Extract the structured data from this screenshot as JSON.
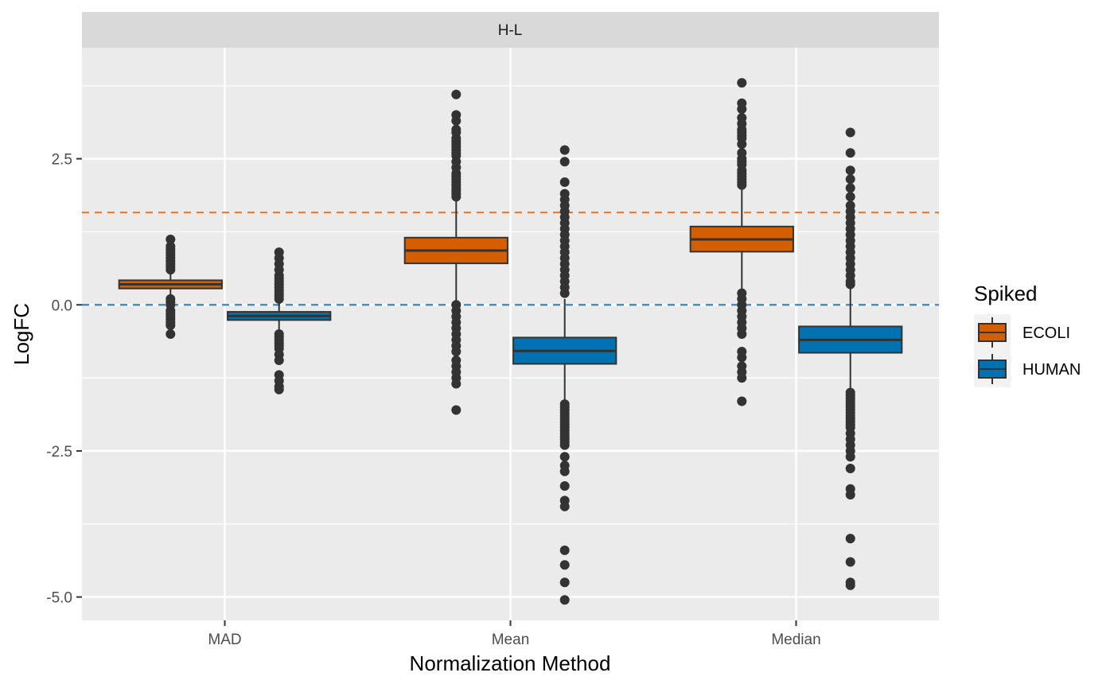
{
  "chart_data": {
    "type": "boxplot",
    "facet_label": "H-L",
    "xlabel": "Normalization Method",
    "ylabel": "LogFC",
    "ylim": [
      -5.4,
      4.4
    ],
    "y_ticks": [
      -5.0,
      -2.5,
      0.0,
      2.5
    ],
    "y_tick_labels": [
      "-5.0",
      "-2.5",
      "0.0",
      "2.5"
    ],
    "categories": [
      "MAD",
      "Mean",
      "Median"
    ],
    "legend": {
      "title": "Spiked",
      "position": "right"
    },
    "grid": true,
    "reference_lines": [
      {
        "y": 1.58,
        "color": "#E07B2E",
        "style": "dashed"
      },
      {
        "y": 0.0,
        "color": "#2E8BC8",
        "style": "dashed"
      }
    ],
    "series": [
      {
        "name": "ECOLI",
        "color": "#D55E00",
        "boxes": [
          {
            "category": "MAD",
            "min": -0.05,
            "q1": 0.28,
            "median": 0.35,
            "q3": 0.42,
            "max": 0.55,
            "outliers": [
              1.12,
              1.0,
              0.95,
              0.9,
              0.85,
              0.8,
              0.75,
              0.7,
              0.65,
              0.6,
              0.1,
              0.05,
              0.0,
              -0.1,
              -0.15,
              -0.2,
              -0.25,
              -0.3,
              -0.35,
              -0.5
            ]
          },
          {
            "category": "Mean",
            "min": 0.05,
            "q1": 0.71,
            "median": 0.93,
            "q3": 1.15,
            "max": 1.8,
            "outliers": [
              3.6,
              3.25,
              3.15,
              3.0,
              2.95,
              2.85,
              2.8,
              2.75,
              2.7,
              2.65,
              2.6,
              2.55,
              2.45,
              2.35,
              2.25,
              2.2,
              2.15,
              2.1,
              2.05,
              2.0,
              1.95,
              1.9,
              1.85,
              0.0,
              -0.1,
              -0.2,
              -0.3,
              -0.4,
              -0.5,
              -0.6,
              -0.7,
              -0.8,
              -0.95,
              -1.05,
              -1.15,
              -1.25,
              -1.35,
              -1.8
            ]
          },
          {
            "category": "Median",
            "min": 0.25,
            "q1": 0.91,
            "median": 1.12,
            "q3": 1.34,
            "max": 2.0,
            "outliers": [
              3.8,
              3.45,
              3.35,
              3.2,
              3.1,
              3.0,
              2.95,
              2.9,
              2.85,
              2.75,
              2.6,
              2.5,
              2.45,
              2.4,
              2.3,
              2.25,
              2.2,
              2.15,
              2.1,
              2.05,
              0.2,
              0.1,
              0.0,
              -0.1,
              -0.2,
              -0.3,
              -0.4,
              -0.5,
              -0.8,
              -0.9,
              -1.05,
              -1.15,
              -1.25,
              -1.65
            ]
          }
        ]
      },
      {
        "name": "HUMAN",
        "color": "#0072B2",
        "boxes": [
          {
            "category": "MAD",
            "min": -0.45,
            "q1": -0.26,
            "median": -0.19,
            "q3": -0.12,
            "max": 0.05,
            "outliers": [
              0.9,
              0.8,
              0.7,
              0.6,
              0.5,
              0.45,
              0.4,
              0.35,
              0.3,
              0.25,
              0.2,
              0.15,
              0.1,
              -0.5,
              -0.55,
              -0.6,
              -0.65,
              -0.7,
              -0.75,
              -0.85,
              -0.95,
              -1.2,
              -1.3,
              -1.4,
              -1.45
            ]
          },
          {
            "category": "Mean",
            "min": -1.65,
            "q1": -1.01,
            "median": -0.79,
            "q3": -0.56,
            "max": 0.1,
            "outliers": [
              2.65,
              2.45,
              2.1,
              1.9,
              1.8,
              1.7,
              1.6,
              1.5,
              1.4,
              1.3,
              1.2,
              1.1,
              1.0,
              0.9,
              0.8,
              0.7,
              0.6,
              0.5,
              0.4,
              0.3,
              0.2,
              -1.7,
              -1.75,
              -1.8,
              -1.85,
              -1.9,
              -1.95,
              -2.0,
              -2.05,
              -2.1,
              -2.15,
              -2.2,
              -2.25,
              -2.3,
              -2.35,
              -2.4,
              -2.6,
              -2.75,
              -2.85,
              -3.1,
              -3.35,
              -3.45,
              -4.2,
              -4.45,
              -4.75,
              -5.05
            ]
          },
          {
            "category": "Median",
            "min": -1.45,
            "q1": -0.82,
            "median": -0.6,
            "q3": -0.37,
            "max": 0.3,
            "outliers": [
              2.95,
              2.6,
              2.3,
              2.15,
              2.0,
              1.85,
              1.7,
              1.6,
              1.5,
              1.4,
              1.3,
              1.2,
              1.1,
              1.0,
              0.9,
              0.8,
              0.7,
              0.6,
              0.5,
              0.4,
              0.35,
              -1.5,
              -1.55,
              -1.6,
              -1.65,
              -1.7,
              -1.75,
              -1.8,
              -1.85,
              -1.9,
              -1.95,
              -2.0,
              -2.05,
              -2.1,
              -2.2,
              -2.3,
              -2.4,
              -2.5,
              -2.6,
              -2.8,
              -3.15,
              -3.25,
              -4.0,
              -4.4,
              -4.75,
              -4.8
            ]
          }
        ]
      }
    ]
  }
}
